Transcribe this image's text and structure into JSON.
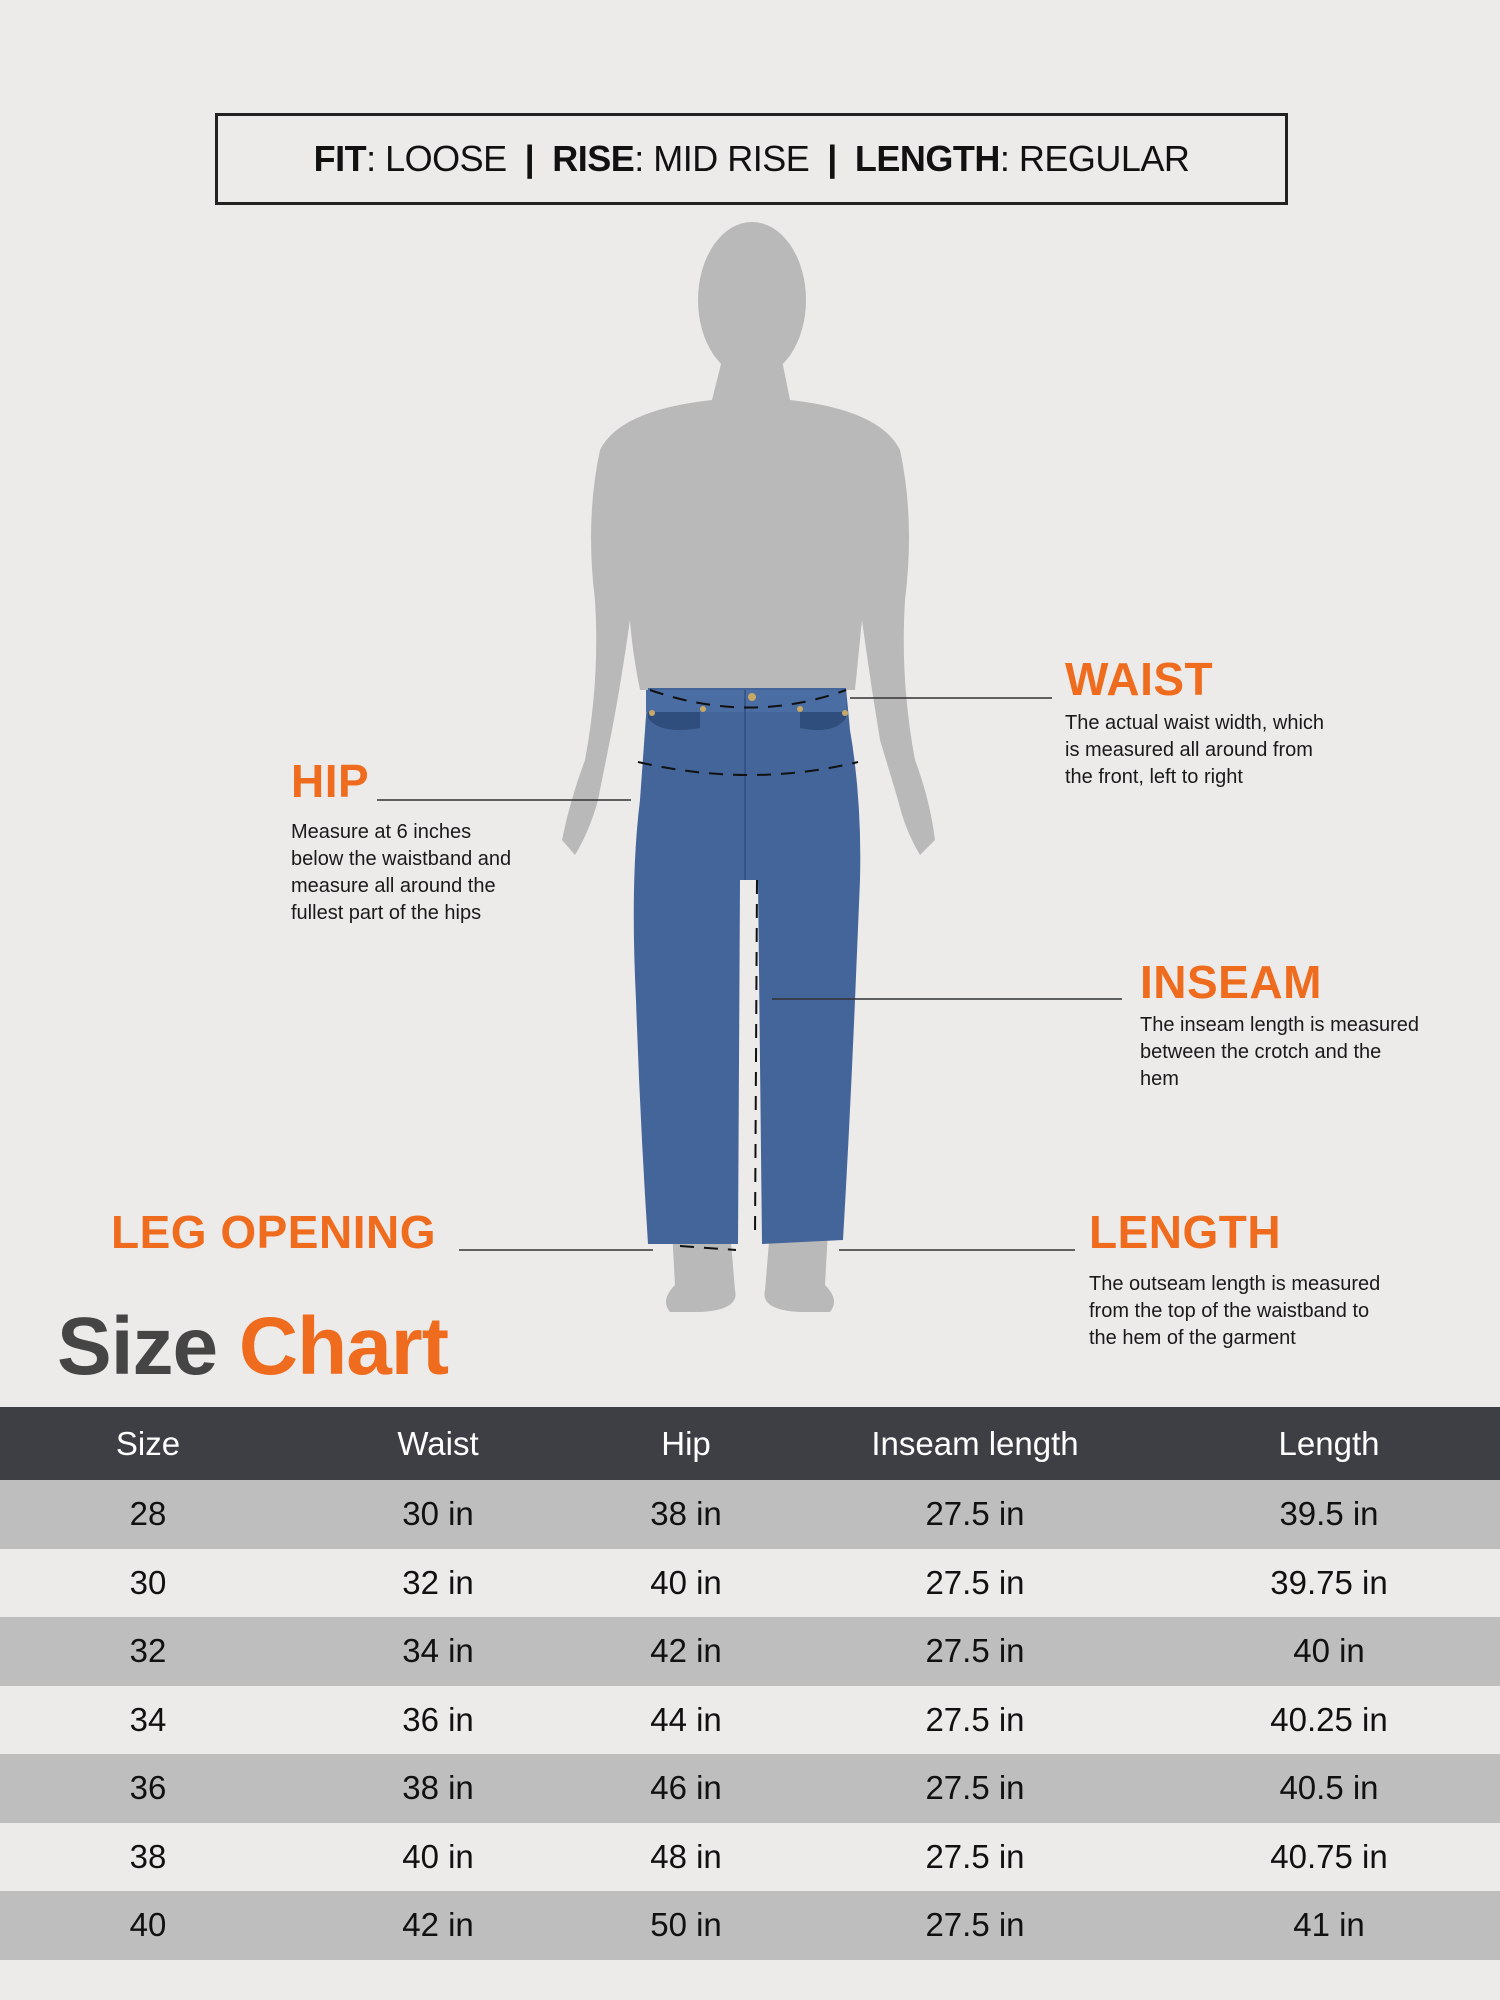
{
  "header": {
    "fit_key": "FIT",
    "fit_val": "LOOSE",
    "rise_key": "RISE",
    "rise_val": "MID RISE",
    "length_key": "LENGTH",
    "length_val": "REGULAR",
    "sep": "|"
  },
  "measurements": {
    "waist": {
      "label": "WAIST",
      "desc": [
        "The actual waist width, which",
        "is measured all around from",
        "the front, left to right"
      ]
    },
    "hip": {
      "label": "HIP",
      "desc": [
        "Measure at 6 inches",
        "below the waistband and",
        "measure all around the",
        "fullest part of the hips"
      ]
    },
    "inseam": {
      "label": "INSEAM",
      "desc": [
        "The inseam length is measured",
        "between the crotch and the",
        "hem"
      ]
    },
    "leg_opening": {
      "label": "LEG OPENING"
    },
    "length": {
      "label": "LENGTH",
      "desc": [
        "The outseam length is measured",
        "from the top of the waistband to",
        "the hem of the garment"
      ]
    }
  },
  "title": {
    "part1": "Size",
    "part2": "Chart"
  },
  "colors": {
    "accent": "#ef6c1e",
    "header_bg": "#3e3f44",
    "row_alt": "#bebebe",
    "denim": "#44659a",
    "silhouette": "#b9b9b9"
  },
  "table": {
    "headers": [
      "Size",
      "Waist",
      "Hip",
      "Inseam length",
      "Length"
    ],
    "rows": [
      [
        "28",
        "30 in",
        "38 in",
        "27.5 in",
        "39.5 in"
      ],
      [
        "30",
        "32 in",
        "40 in",
        "27.5 in",
        "39.75 in"
      ],
      [
        "32",
        "34 in",
        "42 in",
        "27.5 in",
        "40 in"
      ],
      [
        "34",
        "36 in",
        "44 in",
        "27.5 in",
        "40.25 in"
      ],
      [
        "36",
        "38 in",
        "46 in",
        "27.5 in",
        "40.5 in"
      ],
      [
        "38",
        "40 in",
        "48 in",
        "27.5 in",
        "40.75 in"
      ],
      [
        "40",
        "42 in",
        "50 in",
        "27.5 in",
        "41 in"
      ]
    ]
  }
}
